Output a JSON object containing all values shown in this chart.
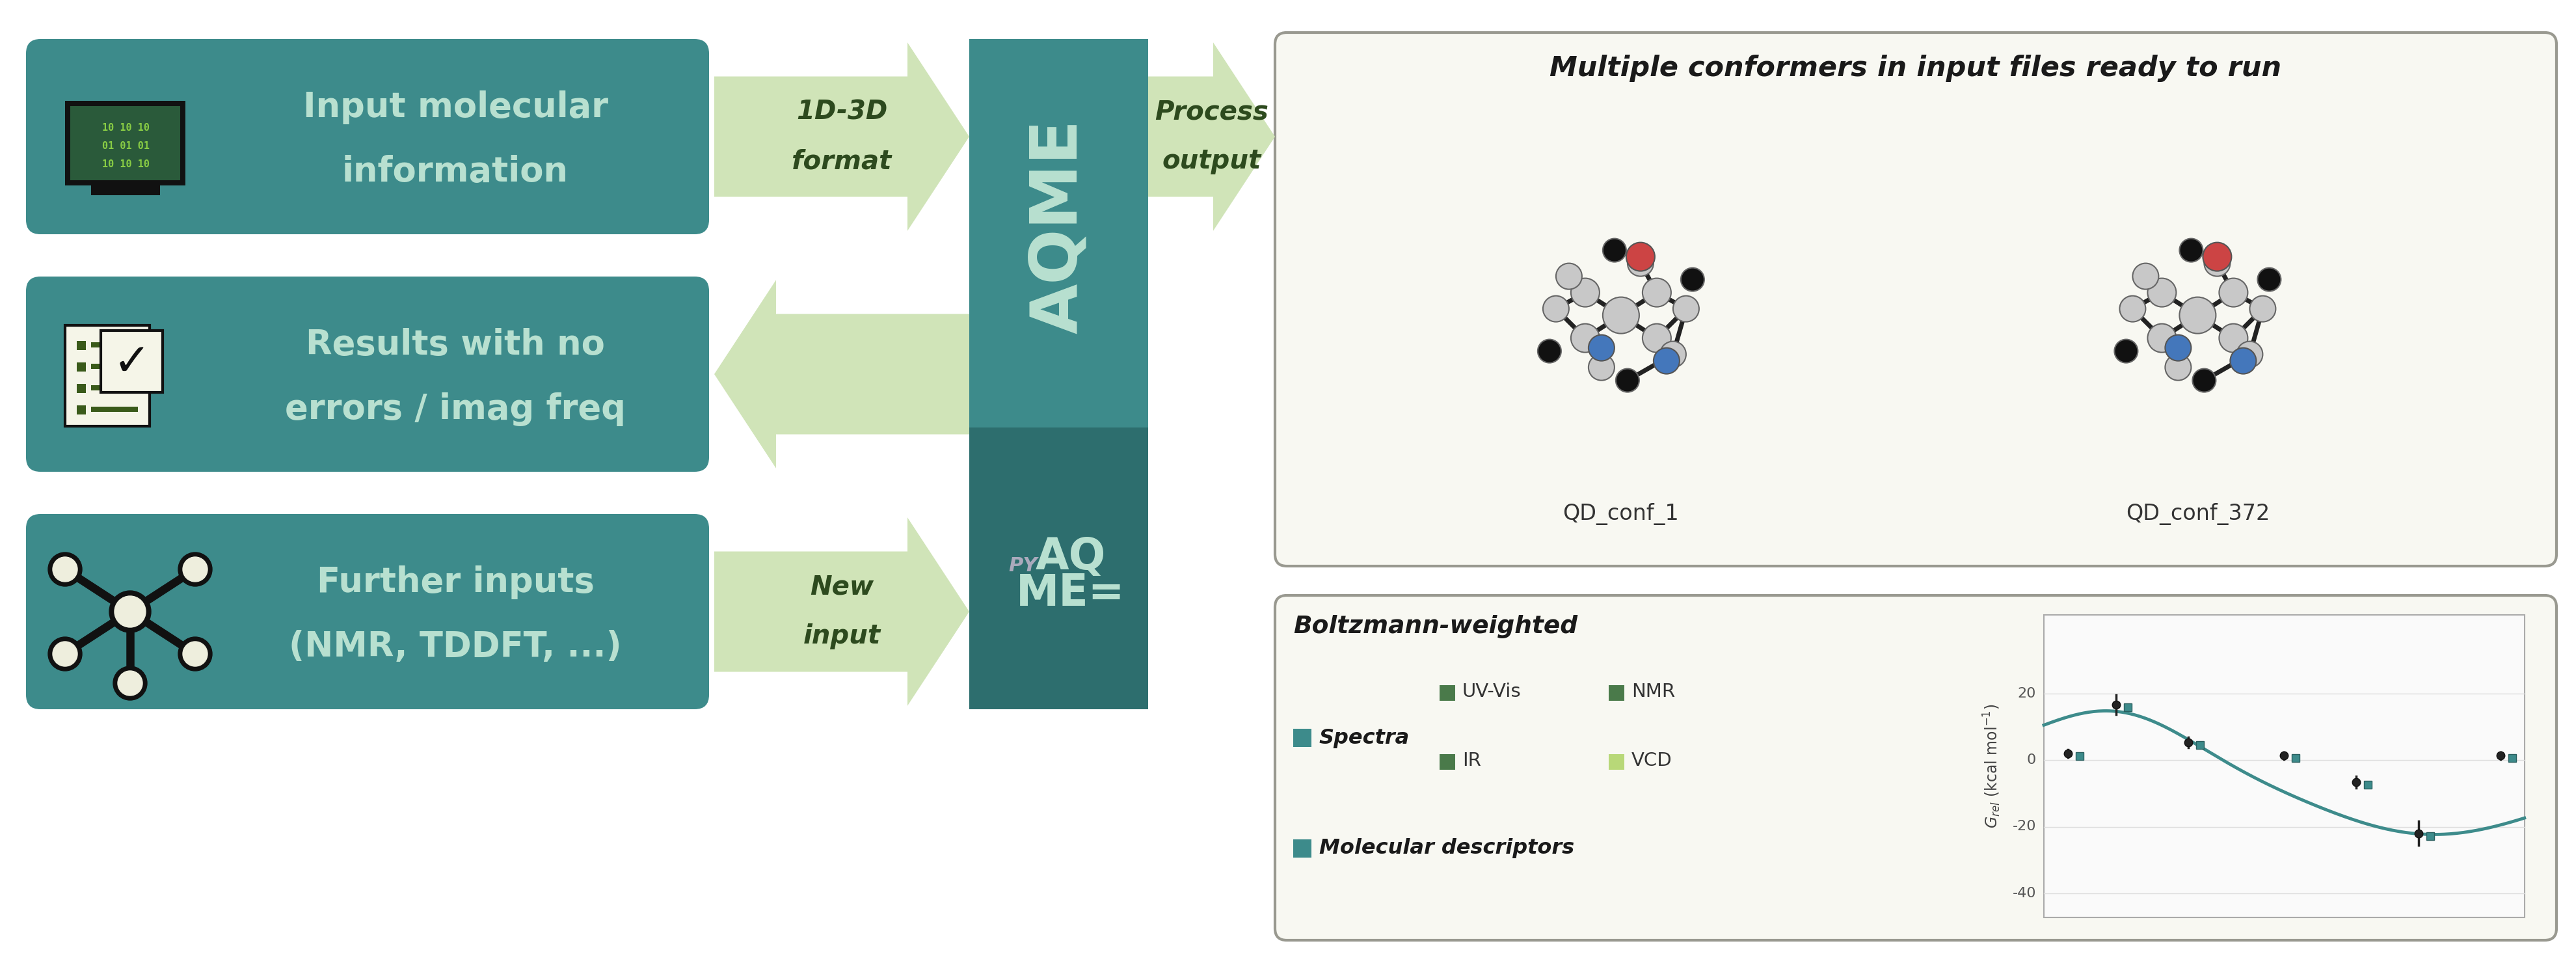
{
  "bg_color": "#ffffff",
  "teal_color": "#3d8b8b",
  "teal_dark": "#2d6e6e",
  "light_green": "#d8e8c8",
  "light_green_arrow": "#c8dbb0",
  "dark_green_text": "#2d4a1e",
  "light_teal_text": "#b8e0d0",
  "box1_text1": "Input molecular",
  "box1_text2": "information",
  "box2_text1": "Results with no",
  "box2_text2": "errors / imag freq",
  "box3_text1": "Further inputs",
  "box3_text2": "(NMR, TDDFT, ...)",
  "arrow1_label1": "1D-3D",
  "arrow1_label2": "format",
  "arrow2_label1": "Process",
  "arrow2_label2": "output",
  "arrow3_label1": "New",
  "arrow3_label2": "input",
  "aqme_text": "AQME",
  "right_box1_title": "Multiple conformers in input files ready to run",
  "right_box2_title": "Boltzmann-weighted",
  "mol1_label": "QD_conf_1",
  "mol2_label": "QD_conf_372",
  "legend_spectra": "Spectra",
  "legend_mol_desc": "Molecular descriptors",
  "legend_sub": [
    "UV-Vis",
    "NMR",
    "IR",
    "VCD"
  ],
  "arr_color": "#d0e4b8",
  "teal_sq_color": "#3d8b8b"
}
